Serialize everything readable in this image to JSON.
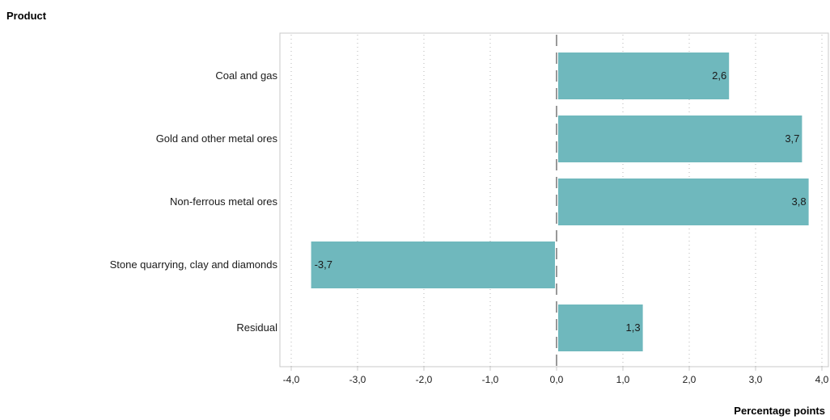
{
  "chart_data": {
    "type": "bar",
    "orientation": "horizontal",
    "title": "",
    "ylabel": "Product",
    "xlabel": "Percentage points",
    "categories": [
      "Coal and gas",
      "Gold and other metal ores",
      "Non-ferrous metal ores",
      "Stone quarrying, clay and diamonds",
      "Residual"
    ],
    "values": [
      2.6,
      3.7,
      3.8,
      -3.7,
      1.3
    ],
    "data_labels": [
      "2,6",
      "3,7",
      "3,8",
      "-3,7",
      "1,3"
    ],
    "xlim": [
      -4.0,
      4.0
    ],
    "xticks": [
      -4,
      -3,
      -2,
      -1,
      0,
      1,
      2,
      3,
      4
    ],
    "xtick_labels": [
      "-4,0",
      "-3,0",
      "-2,0",
      "-1,0",
      "0,0",
      "1,0",
      "2,0",
      "3,0",
      "4,0"
    ],
    "bar_color": "#6fb8bd",
    "grid": "vertical dotted",
    "legend": "none"
  }
}
